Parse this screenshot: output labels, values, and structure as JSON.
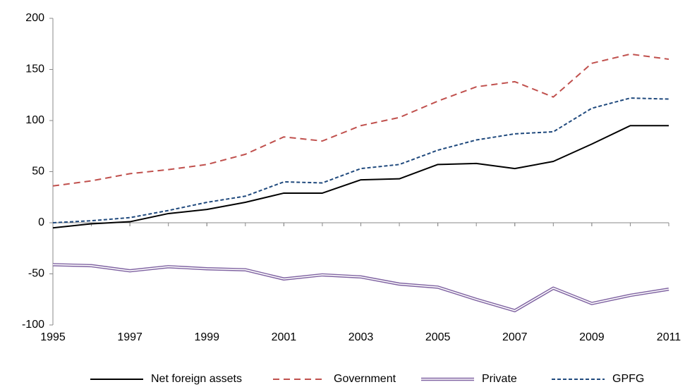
{
  "chart_data": {
    "type": "line",
    "x": [
      1995,
      1996,
      1997,
      1998,
      1999,
      2000,
      2001,
      2002,
      2003,
      2004,
      2005,
      2006,
      2007,
      2008,
      2009,
      2010,
      2011
    ],
    "xlim": [
      1995,
      2011
    ],
    "xticks": [
      1995,
      1997,
      1999,
      2001,
      2003,
      2005,
      2007,
      2009,
      2011
    ],
    "ylim": [
      -100,
      200
    ],
    "yticks": [
      -100,
      -50,
      0,
      50,
      100,
      150,
      200
    ],
    "legend": "bottom",
    "series": [
      {
        "name": "Net foreign assets",
        "color": "#000000",
        "style": "solid",
        "values": [
          -5,
          -1,
          1,
          9,
          13,
          20,
          29,
          29,
          42,
          43,
          57,
          58,
          53,
          60,
          77,
          95,
          95
        ]
      },
      {
        "name": "Government",
        "color": "#c0504d",
        "style": "dashed",
        "values": [
          36,
          41,
          48,
          52,
          57,
          67,
          84,
          80,
          95,
          103,
          119,
          133,
          138,
          123,
          156,
          165,
          160
        ]
      },
      {
        "name": "Private",
        "color": "#8064a2",
        "style": "double",
        "values": [
          -41,
          -42,
          -47,
          -43,
          -45,
          -46,
          -55,
          -51,
          -53,
          -60,
          -63,
          -75,
          -86,
          -64,
          -79,
          -71,
          -65
        ]
      },
      {
        "name": "GPFG",
        "color": "#1f497d",
        "style": "short-dashed",
        "values": [
          0,
          2,
          5,
          12,
          20,
          26,
          40,
          39,
          53,
          57,
          71,
          81,
          87,
          89,
          112,
          122,
          121
        ]
      }
    ]
  }
}
